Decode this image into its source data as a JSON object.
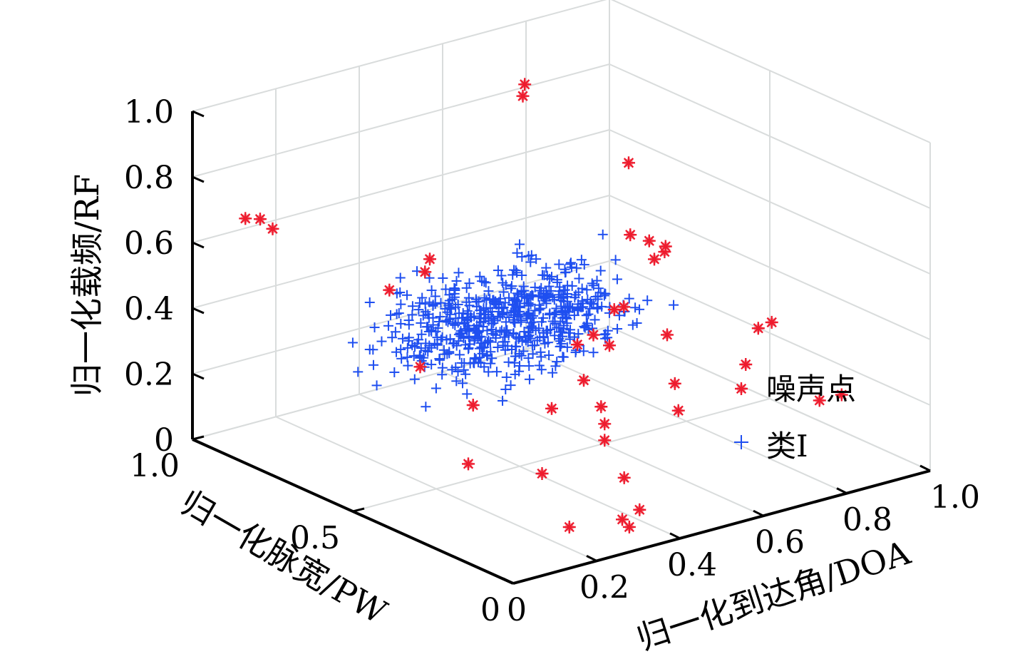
{
  "chart_data": {
    "type": "scatter3d",
    "title": "",
    "xlabel": "归一化到达角/DOA",
    "ylabel": "归一化脉宽/PW",
    "zlabel": "归一化载频/RF",
    "xlim": [
      0,
      1.0
    ],
    "ylim": [
      0,
      1.0
    ],
    "zlim": [
      0,
      1.0
    ],
    "x_ticks": [
      "0",
      "0.2",
      "0.4",
      "0.6",
      "0.8",
      "1.0"
    ],
    "y_ticks": [
      "0",
      "0.5",
      "1.0"
    ],
    "z_ticks": [
      "0",
      "0.2",
      "0.4",
      "0.6",
      "0.8",
      "1.0"
    ],
    "grid": true,
    "legend": {
      "placement": "bottom-right"
    },
    "colors": {
      "noise": "#ee1c2e",
      "class1": "#1f4ff0",
      "grid": "#d9dcdc",
      "axis": "#000000"
    },
    "series": [
      {
        "name": "噪声点",
        "marker": "asterisk",
        "color": "#ee1c2e",
        "points": [
          [
            0.6,
            0.75,
            0.95
          ],
          [
            0.62,
            0.77,
            0.97
          ],
          [
            0.55,
            0.35,
            0.72
          ],
          [
            0.58,
            0.33,
            0.7
          ],
          [
            0.7,
            0.55,
            0.8
          ],
          [
            0.8,
            0.6,
            0.45
          ],
          [
            0.84,
            0.62,
            0.45
          ],
          [
            0.75,
            0.5,
            0.55
          ],
          [
            0.05,
            0.9,
            0.7
          ],
          [
            0.07,
            0.88,
            0.7
          ],
          [
            0.1,
            0.88,
            0.66
          ],
          [
            0.3,
            0.65,
            0.6
          ],
          [
            0.18,
            0.62,
            0.56
          ],
          [
            0.4,
            0.32,
            0.45
          ],
          [
            0.5,
            0.35,
            0.4
          ],
          [
            0.58,
            0.25,
            0.3
          ],
          [
            0.55,
            0.2,
            0.25
          ],
          [
            0.4,
            0.3,
            0.35
          ],
          [
            0.85,
            0.15,
            0.2
          ],
          [
            0.88,
            0.12,
            0.22
          ],
          [
            0.6,
            0.3,
            0.42
          ],
          [
            0.65,
            0.5,
            0.4
          ],
          [
            0.25,
            0.45,
            0.26
          ],
          [
            0.45,
            0.3,
            0.2
          ],
          [
            0.45,
            0.3,
            0.15
          ],
          [
            0.4,
            0.4,
            0.22
          ],
          [
            0.48,
            0.35,
            0.22
          ],
          [
            0.2,
            0.4,
            0.12
          ],
          [
            0.3,
            0.3,
            0.1
          ],
          [
            0.2,
            0.55,
            0.35
          ],
          [
            0.42,
            0.2,
            0.09
          ],
          [
            0.38,
            0.1,
            0.05
          ],
          [
            0.3,
            0.05,
            0.07
          ],
          [
            0.34,
            0.08,
            0.02
          ],
          [
            0.25,
            0.15,
            0.02
          ],
          [
            0.5,
            0.4,
            0.41
          ],
          [
            0.55,
            0.4,
            0.47
          ],
          [
            0.25,
            0.6,
            0.6
          ],
          [
            0.78,
            0.25,
            0.4
          ],
          [
            0.82,
            0.26,
            0.4
          ],
          [
            0.75,
            0.25,
            0.3
          ]
        ]
      },
      {
        "name": "类I",
        "marker": "plus",
        "color": "#1f4ff0",
        "center": [
          0.4,
          0.55,
          0.42
        ],
        "spread": [
          0.06,
          0.08,
          0.06
        ],
        "count": 620
      }
    ]
  }
}
